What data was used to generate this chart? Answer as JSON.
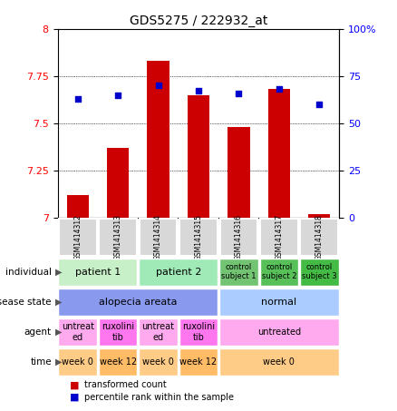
{
  "title": "GDS5275 / 222932_at",
  "samples": [
    "GSM1414312",
    "GSM1414313",
    "GSM1414314",
    "GSM1414315",
    "GSM1414316",
    "GSM1414317",
    "GSM1414318"
  ],
  "bar_values": [
    7.12,
    7.37,
    7.83,
    7.65,
    7.48,
    7.68,
    7.02
  ],
  "dot_values": [
    63,
    65,
    70,
    67,
    66,
    68,
    60
  ],
  "ylim_left": [
    7.0,
    8.0
  ],
  "ylim_right": [
    0,
    100
  ],
  "yticks_left": [
    7.0,
    7.25,
    7.5,
    7.75,
    8.0
  ],
  "yticks_right": [
    0,
    25,
    50,
    75,
    100
  ],
  "bar_color": "#cc0000",
  "dot_color": "#0000cc",
  "rows": [
    {
      "label": "individual",
      "cells": [
        {
          "text": "patient 1",
          "span": 2,
          "color": "#c8f0c8",
          "fontsize": 8
        },
        {
          "text": "patient 2",
          "span": 2,
          "color": "#a0eab8",
          "fontsize": 8
        },
        {
          "text": "control\nsubject 1",
          "span": 1,
          "color": "#72c472",
          "fontsize": 6
        },
        {
          "text": "control\nsubject 2",
          "span": 1,
          "color": "#58c058",
          "fontsize": 6
        },
        {
          "text": "control\nsubject 3",
          "span": 1,
          "color": "#44bb44",
          "fontsize": 6
        }
      ]
    },
    {
      "label": "disease state",
      "cells": [
        {
          "text": "alopecia areata",
          "span": 4,
          "color": "#8899ee",
          "fontsize": 8
        },
        {
          "text": "normal",
          "span": 3,
          "color": "#aaccff",
          "fontsize": 8
        }
      ]
    },
    {
      "label": "agent",
      "cells": [
        {
          "text": "untreat\ned",
          "span": 1,
          "color": "#ffaaee",
          "fontsize": 7
        },
        {
          "text": "ruxolini\ntib",
          "span": 1,
          "color": "#ff77ee",
          "fontsize": 7
        },
        {
          "text": "untreat\ned",
          "span": 1,
          "color": "#ffaaee",
          "fontsize": 7
        },
        {
          "text": "ruxolini\ntib",
          "span": 1,
          "color": "#ff77ee",
          "fontsize": 7
        },
        {
          "text": "untreated",
          "span": 3,
          "color": "#ffaaee",
          "fontsize": 7
        }
      ]
    },
    {
      "label": "time",
      "cells": [
        {
          "text": "week 0",
          "span": 1,
          "color": "#ffcc88",
          "fontsize": 7
        },
        {
          "text": "week 12",
          "span": 1,
          "color": "#ffbb66",
          "fontsize": 7
        },
        {
          "text": "week 0",
          "span": 1,
          "color": "#ffcc88",
          "fontsize": 7
        },
        {
          "text": "week 12",
          "span": 1,
          "color": "#ffbb66",
          "fontsize": 7
        },
        {
          "text": "week 0",
          "span": 3,
          "color": "#ffcc88",
          "fontsize": 7
        }
      ]
    }
  ],
  "legend": [
    {
      "color": "#cc0000",
      "label": "transformed count"
    },
    {
      "color": "#0000cc",
      "label": "percentile rank within the sample"
    }
  ]
}
